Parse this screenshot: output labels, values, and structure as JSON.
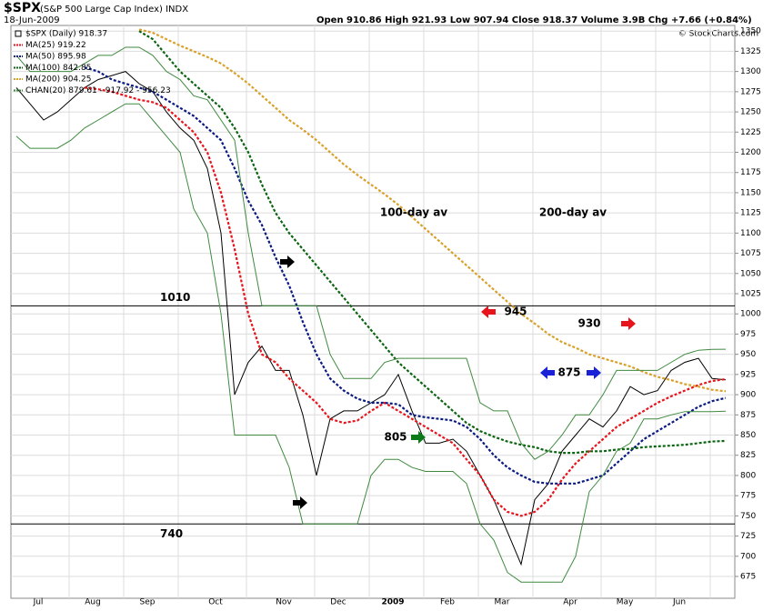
{
  "chart_data": {
    "type": "line",
    "title": "$SPX",
    "subtitle": "(S&P 500 Large Cap Index) INDX",
    "date": "18-Jun-2009",
    "quote": "Open 910.86  High 921.93  Low 907.94  Close 918.37  Volume 3.9B  Chg +7.66 (+0.84%)",
    "credit": "© StockCharts.com",
    "categories": [
      null,
      null,
      "Jul",
      null,
      null,
      null,
      "Aug",
      null,
      null,
      null,
      "Sep",
      null,
      null,
      null,
      null,
      "Oct",
      null,
      null,
      null,
      null,
      "Nov",
      null,
      null,
      null,
      "Dec",
      null,
      null,
      null,
      "2009",
      null,
      null,
      null,
      "Feb",
      null,
      null,
      null,
      "Mar",
      null,
      null,
      null,
      null,
      "Apr",
      null,
      null,
      null,
      "May",
      null,
      null,
      null,
      "Jun",
      null,
      null,
      null
    ],
    "ylim": [
      648,
      1357
    ],
    "yticks": [
      675,
      700,
      725,
      750,
      775,
      800,
      825,
      850,
      875,
      900,
      925,
      950,
      975,
      1000,
      1025,
      1050,
      1075,
      1100,
      1125,
      1150,
      1175,
      1200,
      1225,
      1250,
      1275,
      1300,
      1325,
      1350
    ],
    "grid": true,
    "hlines": [
      1010,
      740
    ],
    "series": [
      {
        "name": "$SPX (Daily) 918.37",
        "color": "#000000",
        "values": [
          1280,
          1260,
          1240,
          1250,
          1265,
          1280,
          1290,
          1295,
          1300,
          1285,
          1275,
          1250,
          1230,
          1215,
          1180,
          1100,
          900,
          940,
          960,
          930,
          930,
          875,
          800,
          870,
          880,
          880,
          890,
          900,
          925,
          880,
          840,
          840,
          845,
          830,
          800,
          770,
          730,
          690,
          770,
          790,
          830,
          850,
          870,
          860,
          880,
          910,
          900,
          905,
          930,
          940,
          945,
          920,
          918.37
        ]
      },
      {
        "name": "MA(25) 919.22",
        "color": "#e8141c",
        "values": [
          null,
          null,
          null,
          null,
          null,
          1280,
          1278,
          1275,
          1270,
          1265,
          1262,
          1255,
          1240,
          1225,
          1200,
          1150,
          1080,
          1000,
          950,
          940,
          920,
          905,
          890,
          870,
          865,
          868,
          880,
          890,
          880,
          870,
          860,
          850,
          840,
          820,
          800,
          770,
          755,
          750,
          755,
          770,
          795,
          815,
          830,
          845,
          860,
          870,
          880,
          890,
          898,
          905,
          912,
          917,
          919.22
        ]
      },
      {
        "name": "MA(50) 895.98",
        "color": "#0a1a80",
        "values": [
          null,
          null,
          null,
          null,
          null,
          1305,
          1300,
          1290,
          1285,
          1280,
          1275,
          1265,
          1255,
          1245,
          1230,
          1215,
          1180,
          1140,
          1110,
          1070,
          1035,
          990,
          950,
          920,
          905,
          895,
          890,
          890,
          888,
          875,
          872,
          870,
          868,
          860,
          845,
          825,
          810,
          800,
          792,
          790,
          790,
          790,
          795,
          800,
          815,
          830,
          845,
          855,
          865,
          875,
          885,
          892,
          895.98
        ]
      },
      {
        "name": "MA(100) 842.85",
        "color": "#0b6410",
        "values": [
          null,
          null,
          null,
          null,
          null,
          null,
          null,
          null,
          null,
          1350,
          1340,
          1320,
          1300,
          1285,
          1270,
          1255,
          1230,
          1200,
          1160,
          1125,
          1100,
          1080,
          1060,
          1040,
          1020,
          1000,
          980,
          960,
          940,
          925,
          910,
          895,
          880,
          865,
          855,
          848,
          842,
          838,
          835,
          830,
          828,
          828,
          830,
          830,
          832,
          833,
          835,
          836,
          837,
          838,
          840,
          842,
          842.85
        ]
      },
      {
        "name": "MA(200) 904.25",
        "color": "#d9a02a",
        "values": [
          null,
          null,
          null,
          null,
          null,
          null,
          null,
          null,
          null,
          1352,
          1348,
          1340,
          1332,
          1325,
          1318,
          1310,
          1298,
          1285,
          1270,
          1255,
          1240,
          1228,
          1215,
          1200,
          1185,
          1172,
          1160,
          1148,
          1135,
          1120,
          1105,
          1090,
          1075,
          1060,
          1045,
          1030,
          1015,
          1000,
          988,
          975,
          965,
          958,
          950,
          945,
          940,
          935,
          928,
          922,
          918,
          913,
          910,
          906,
          904.25
        ]
      },
      {
        "name": "CHAN(20) 879.61 - 917.92 - 956.23",
        "color": "#3f8a3f",
        "upper": [
          1320,
          1300,
          1300,
          1300,
          1300,
          1310,
          1320,
          1320,
          1330,
          1330,
          1320,
          1300,
          1290,
          1270,
          1265,
          1240,
          1215,
          1100,
          1010,
          1010,
          1010,
          1010,
          1010,
          950,
          920,
          920,
          920,
          940,
          945,
          945,
          945,
          945,
          945,
          945,
          890,
          880,
          880,
          840,
          820,
          830,
          850,
          875,
          875,
          900,
          930,
          930,
          930,
          930,
          940,
          950,
          955,
          956,
          956.23
        ],
        "lower": [
          1220,
          1205,
          1205,
          1205,
          1215,
          1230,
          1240,
          1250,
          1260,
          1260,
          1240,
          1220,
          1200,
          1130,
          1100,
          1000,
          850,
          850,
          850,
          850,
          810,
          740,
          740,
          740,
          740,
          740,
          800,
          820,
          820,
          810,
          805,
          805,
          805,
          790,
          740,
          720,
          680,
          668,
          668,
          668,
          668,
          700,
          780,
          800,
          830,
          840,
          870,
          870,
          875,
          879,
          879,
          879,
          879.61
        ]
      }
    ],
    "annotations": [
      {
        "text": "100-day av",
        "color": "#000000"
      },
      {
        "text": "200-day av",
        "color": "#000000"
      },
      {
        "text": "945",
        "color": "#e8141c"
      },
      {
        "text": "930",
        "color": "#e8141c"
      },
      {
        "text": "875",
        "color": "#1a22d8"
      },
      {
        "text": "805",
        "color": "#0b7a1a"
      }
    ]
  }
}
